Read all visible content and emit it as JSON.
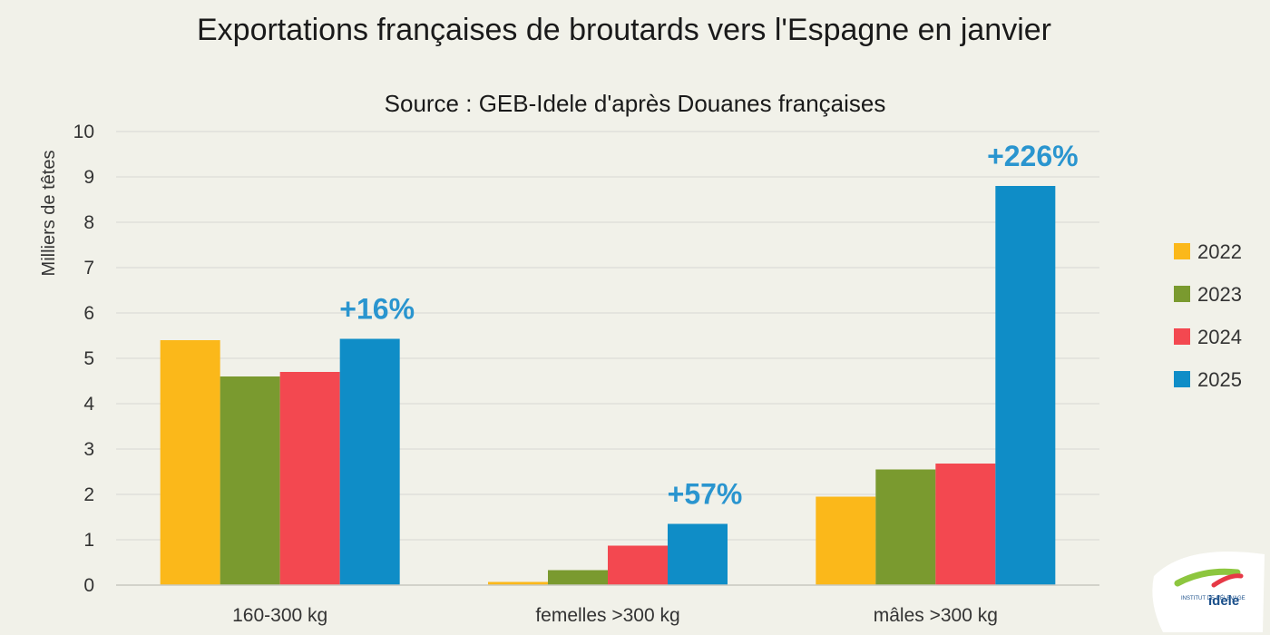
{
  "chart_data": {
    "type": "bar",
    "title": "Exportations françaises de broutards vers l'Espagne en janvier",
    "subtitle": "Source : GEB-Idele d'après Douanes françaises",
    "ylabel": "Milliers de têtes",
    "xlabel": "",
    "ylim": [
      0,
      10
    ],
    "yticks": [
      "0",
      "1",
      "2",
      "3",
      "4",
      "5",
      "6",
      "7",
      "8",
      "9",
      "10"
    ],
    "grid": true,
    "legend_position": "right",
    "categories": [
      "160-300 kg",
      "femelles >300 kg",
      "mâles >300 kg"
    ],
    "series": [
      {
        "name": "2022",
        "color": "#fbb81a",
        "values": [
          5.4,
          0.07,
          1.95
        ]
      },
      {
        "name": "2023",
        "color": "#7a9a2f",
        "values": [
          4.6,
          0.33,
          2.55
        ]
      },
      {
        "name": "2024",
        "color": "#f34850",
        "values": [
          4.7,
          0.87,
          2.68
        ]
      },
      {
        "name": "2025",
        "color": "#0f8dc7",
        "values": [
          5.43,
          1.35,
          8.8
        ]
      }
    ],
    "annotations": [
      {
        "category": "160-300 kg",
        "series": "2025",
        "text": "+16%"
      },
      {
        "category": "femelles >300 kg",
        "series": "2025",
        "text": "+57%"
      },
      {
        "category": "mâles >300 kg",
        "series": "2025",
        "text": "+226%"
      }
    ],
    "annotation_color": "#2a95cf"
  },
  "logo": {
    "icon": "idele-logo-icon",
    "text": "idele",
    "subtext": "INSTITUT DE L'ÉLEVAGE"
  }
}
